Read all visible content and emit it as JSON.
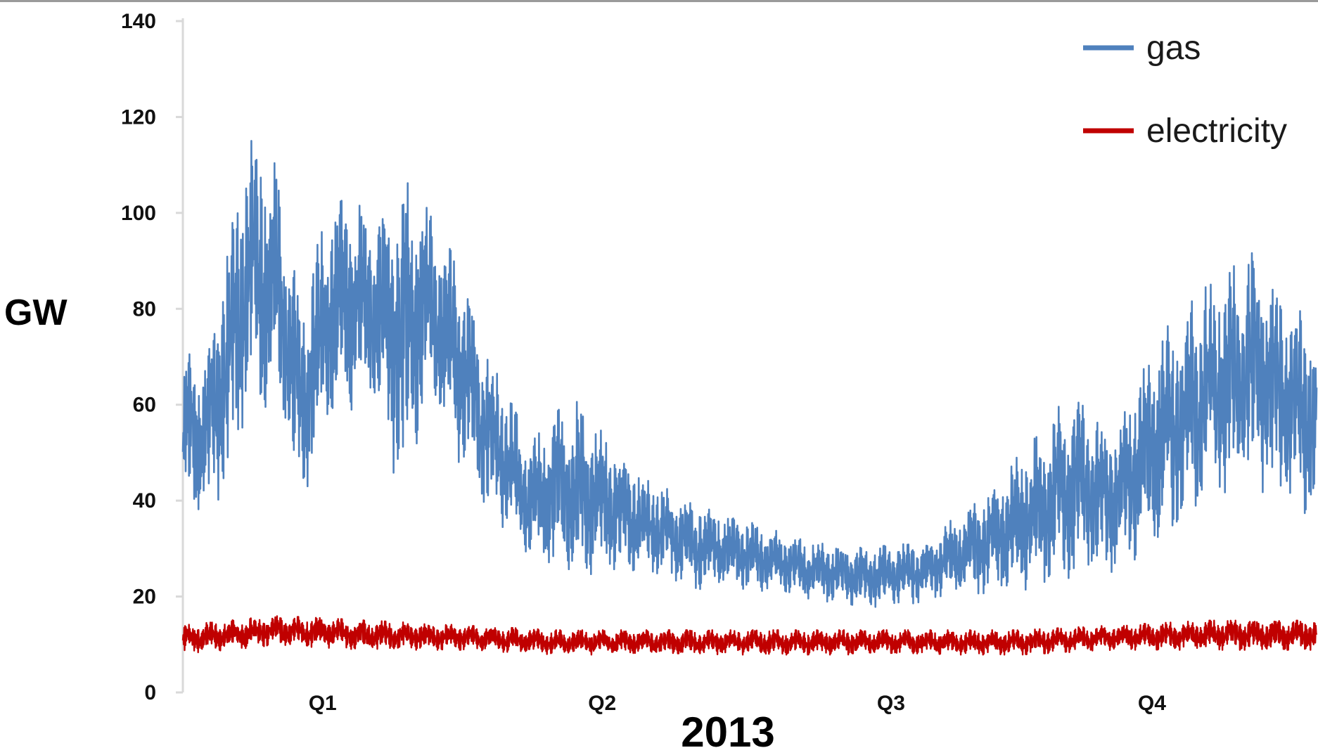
{
  "chart_data": {
    "type": "line",
    "title": "",
    "xlabel": "2013",
    "ylabel": "GW",
    "ylim": [
      0,
      140
    ],
    "yticks": [
      0,
      20,
      40,
      60,
      80,
      100,
      120,
      140
    ],
    "xlim": [
      0,
      365
    ],
    "x_tick_labels": [
      {
        "label": "Q1",
        "day": 45
      },
      {
        "label": "Q2",
        "day": 135
      },
      {
        "label": "Q3",
        "day": 228
      },
      {
        "label": "Q4",
        "day": 312
      }
    ],
    "grid": false,
    "legend_position": "top-right",
    "series": [
      {
        "name": "gas",
        "color": "#4f81bd",
        "envelope": {
          "days": [
            0,
            8,
            15,
            22,
            30,
            38,
            46,
            54,
            62,
            70,
            78,
            88,
            100,
            112,
            125,
            138,
            150,
            165,
            180,
            200,
            220,
            240,
            255,
            270,
            285,
            300,
            315,
            330,
            345,
            365
          ],
          "low": [
            38,
            36,
            45,
            62,
            60,
            40,
            55,
            60,
            62,
            40,
            60,
            50,
            36,
            28,
            24,
            26,
            26,
            22,
            22,
            20,
            18,
            19,
            21,
            22,
            24,
            26,
            32,
            40,
            44,
            36
          ],
          "high": [
            70,
            72,
            95,
            116,
            110,
            80,
            100,
            104,
            98,
            108,
            102,
            90,
            68,
            52,
            62,
            52,
            44,
            40,
            36,
            32,
            30,
            32,
            40,
            50,
            62,
            55,
            75,
            85,
            92,
            75
          ]
        }
      },
      {
        "name": "electricity",
        "color": "#c00000",
        "envelope": {
          "days": [
            0,
            30,
            60,
            90,
            120,
            150,
            180,
            210,
            240,
            270,
            300,
            330,
            365
          ],
          "low": [
            8,
            10,
            9,
            9,
            8,
            8,
            8,
            8,
            8,
            8,
            9,
            9,
            9
          ],
          "high": [
            14,
            16,
            15,
            14,
            13,
            13,
            13,
            13,
            13,
            13,
            14,
            15,
            15
          ]
        }
      }
    ]
  }
}
